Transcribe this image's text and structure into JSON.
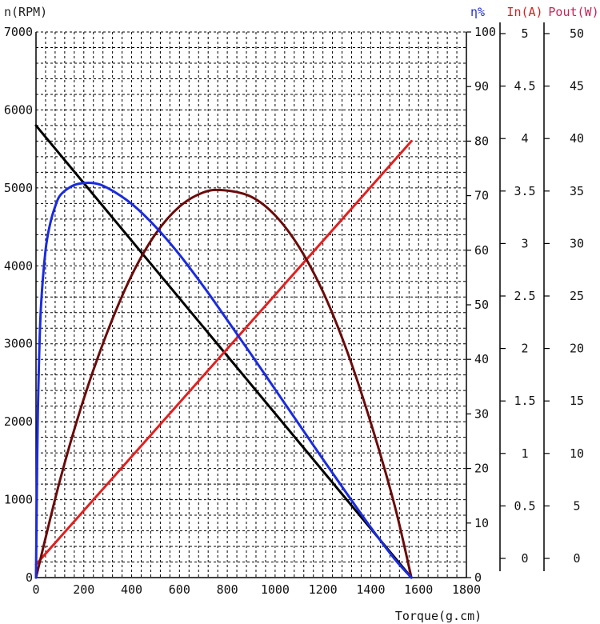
{
  "chart_data": {
    "type": "line",
    "title": "",
    "xlabel": "Torque(g.cm)",
    "xlim": [
      0,
      1800
    ],
    "x_ticks": [
      "0",
      "200",
      "400",
      "600",
      "800",
      "1000",
      "1200",
      "1400",
      "1600",
      "1800"
    ],
    "grid": true,
    "axes": {
      "speed": {
        "label": "n(RPM)",
        "range": [
          0,
          7000
        ],
        "ticks": [
          "0",
          "1000",
          "2000",
          "3000",
          "4000",
          "5000",
          "6000",
          "7000"
        ],
        "color": "#222222"
      },
      "efficiency": {
        "label": "η%",
        "range": [
          0,
          100
        ],
        "ticks": [
          "0",
          "10",
          "20",
          "30",
          "40",
          "50",
          "60",
          "70",
          "80",
          "90",
          "100"
        ],
        "color": "#1f2fd0"
      },
      "current": {
        "label": "In(A)",
        "range": [
          0,
          5
        ],
        "ticks": [
          "0",
          "0.5",
          "1",
          "1.5",
          "2",
          "2.5",
          "3",
          "3.5",
          "4",
          "4.5",
          "5"
        ],
        "color": "#d42020"
      },
      "power": {
        "label": "Pout(W)",
        "range": [
          0,
          50
        ],
        "ticks": [
          "0",
          "5",
          "10",
          "15",
          "20",
          "25",
          "30",
          "35",
          "40",
          "45",
          "50"
        ],
        "color": "#cc2255"
      }
    },
    "series": [
      {
        "axis": "speed",
        "color": "#000000",
        "x": [
          0,
          1570
        ],
        "y": [
          5800,
          0
        ]
      },
      {
        "axis": "current",
        "color": "#e02020",
        "x": [
          0,
          1570
        ],
        "y": [
          0.12,
          4.0
        ]
      },
      {
        "axis": "power",
        "color": "#6b0a0a",
        "x": [
          0,
          100,
          200,
          300,
          400,
          500,
          600,
          700,
          785,
          900,
          1000,
          1100,
          1200,
          1300,
          1400,
          1500,
          1570
        ],
        "y": [
          0,
          8.9,
          16.4,
          22.6,
          27.7,
          31.5,
          34.0,
          35.3,
          35.5,
          34.9,
          33.2,
          30.3,
          26.2,
          20.8,
          14.2,
          6.6,
          0
        ]
      },
      {
        "axis": "efficiency",
        "color": "#1a2be0",
        "x": [
          0,
          5,
          10,
          20,
          40,
          60,
          80,
          100,
          140,
          180,
          240,
          300,
          400,
          500,
          600,
          700,
          800,
          900,
          1000,
          1100,
          1200,
          1300,
          1400,
          1500,
          1570
        ],
        "y": [
          0,
          22,
          35,
          49,
          60,
          65,
          68,
          70,
          71.5,
          72.2,
          72.3,
          71.4,
          68.5,
          64.3,
          59.2,
          53.4,
          47.2,
          40.9,
          34.5,
          28.1,
          21.7,
          15.4,
          9.2,
          3.4,
          0
        ]
      }
    ]
  }
}
